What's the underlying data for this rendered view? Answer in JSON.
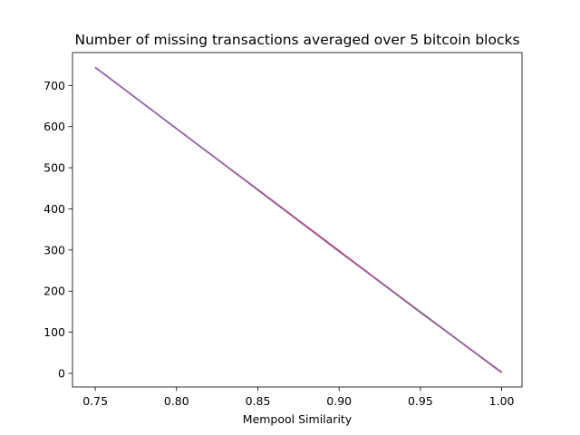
{
  "chart_data": {
    "type": "line",
    "title": "Number of missing transactions averaged over 5 bitcoin blocks",
    "xlabel": "Mempool Similarity",
    "ylabel": "",
    "xlim": [
      0.736,
      1.0125
    ],
    "ylim": [
      -33,
      780
    ],
    "xticks": [
      0.75,
      0.8,
      0.85,
      0.9,
      0.95,
      1.0
    ],
    "xtick_labels": [
      "0.75",
      "0.80",
      "0.85",
      "0.90",
      "0.95",
      "1.00"
    ],
    "yticks": [
      0,
      100,
      200,
      300,
      400,
      500,
      600,
      700
    ],
    "ytick_labels": [
      "0",
      "100",
      "200",
      "300",
      "400",
      "500",
      "600",
      "700"
    ],
    "grid": false,
    "series": [
      {
        "color": "#1f77b4",
        "x": [
          0.75,
          0.8,
          0.85,
          0.9,
          0.95,
          1.0
        ],
        "y": [
          744,
          595,
          446,
          297,
          149,
          2
        ]
      },
      {
        "color": "#ff7f0e",
        "x": [
          0.75,
          0.8,
          0.85,
          0.9,
          0.95,
          1.0
        ],
        "y": [
          744,
          595,
          446,
          297,
          150,
          2
        ]
      },
      {
        "color": "#2ca02c",
        "x": [
          0.75,
          0.8,
          0.85,
          0.9,
          0.95,
          1.0
        ],
        "y": [
          744,
          595,
          446,
          297,
          148,
          3
        ]
      },
      {
        "color": "#d62728",
        "x": [
          0.75,
          0.8,
          0.85,
          0.9,
          0.95,
          1.0
        ],
        "y": [
          744,
          595,
          447,
          298,
          149,
          2
        ]
      },
      {
        "color": "#9467bd",
        "x": [
          0.75,
          0.8,
          0.85,
          0.9,
          0.95,
          1.0
        ],
        "y": [
          744,
          595,
          446,
          296,
          149,
          3
        ]
      }
    ]
  }
}
